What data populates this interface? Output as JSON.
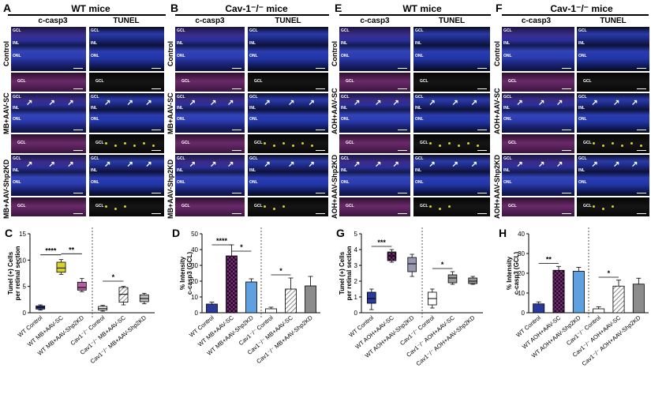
{
  "panels": {
    "A": {
      "label": "A",
      "title": "WT mice"
    },
    "B": {
      "label": "B",
      "title": "Cav-1⁻/⁻ mice"
    },
    "E": {
      "label": "E",
      "title": "WT mice"
    },
    "F": {
      "label": "F",
      "title": "Cav-1⁻/⁻ mice"
    }
  },
  "columns": {
    "stain1": "c-casp3",
    "stain2": "TUNEL"
  },
  "rows": {
    "AB": [
      "Control",
      "MB+AAV-SC",
      "MB+AAV-Shp2KD"
    ],
    "EF": [
      "Control",
      "AOH+AAV-SC",
      "AOH+AAV-Shp2KD"
    ]
  },
  "layers": {
    "gcl": "GCL",
    "inl": "INL",
    "onl": "ONL"
  },
  "colors": {
    "blue": "#3a5fc8",
    "magenta": "#c0509c",
    "dark": "#101010",
    "yellow": "#d8d22a",
    "grey": "#8c8c8c",
    "purple": "#7a2e7a",
    "lightblue": "#5fa0e0",
    "navy": "#2a3a9a"
  },
  "chart_data": [
    {
      "id": "C",
      "type": "box",
      "label": "C",
      "ylabel": "Tunel (+) Cells per retinal section",
      "ylim": [
        0,
        15
      ],
      "yticks": [
        0,
        5,
        10,
        15
      ],
      "categories": [
        "WT Control",
        "WT MB+AAV-SC",
        "WT MB+AAV-Shp2KD",
        "Cav1⁻/⁻ Control",
        "Cav1⁻/⁻ MB+AAV-SC",
        "Cav1⁻/⁻ MB+AAV-Shp2KD"
      ],
      "boxes": [
        {
          "min": 0.5,
          "q1": 0.7,
          "med": 1.0,
          "q3": 1.3,
          "max": 1.5
        },
        {
          "min": 7.3,
          "q1": 7.7,
          "med": 8.5,
          "q3": 9.6,
          "max": 10.1
        },
        {
          "min": 4.0,
          "q1": 4.3,
          "med": 4.8,
          "q3": 5.8,
          "max": 6.5
        },
        {
          "min": 0.3,
          "q1": 0.5,
          "med": 0.8,
          "q3": 1.2,
          "max": 1.4
        },
        {
          "min": 1.5,
          "q1": 2.0,
          "med": 3.5,
          "q3": 4.8,
          "max": 5.0
        },
        {
          "min": 1.7,
          "q1": 2.1,
          "med": 2.7,
          "q3": 3.4,
          "max": 3.7
        }
      ],
      "significance": [
        {
          "between": [
            0,
            1
          ],
          "text": "****",
          "y": 11
        },
        {
          "between": [
            1,
            2
          ],
          "text": "**",
          "y": 11.2
        },
        {
          "between": [
            3,
            4
          ],
          "text": "*",
          "y": 6.0
        }
      ]
    },
    {
      "id": "D",
      "type": "bar",
      "label": "D",
      "ylabel": "% Intensity c-casp3 (GCL)",
      "ylim": [
        0,
        50
      ],
      "yticks": [
        0,
        10,
        20,
        30,
        40,
        50
      ],
      "categories": [
        "WT Control",
        "WT MB+AAV-SC",
        "WT MB+AAV-Shp2KD",
        "Cav1⁻/⁻ Control",
        "Cav1⁻/⁻ MB+AAV-SC",
        "Cav1⁻/⁻ MB+AAV-Shp2KD"
      ],
      "values": [
        5.5,
        36,
        19.5,
        2.5,
        15,
        17
      ],
      "errors": [
        1.2,
        7,
        2,
        1,
        7,
        6
      ],
      "significance": [
        {
          "between": [
            0,
            1
          ],
          "text": "****",
          "y": 43
        },
        {
          "between": [
            1,
            2
          ],
          "text": "*",
          "y": 39
        },
        {
          "between": [
            3,
            4
          ],
          "text": "*",
          "y": 24
        }
      ]
    },
    {
      "id": "G",
      "type": "box",
      "label": "G",
      "ylabel": "Tunel (+) Cells per retinal section",
      "ylim": [
        0,
        5
      ],
      "yticks": [
        0,
        1,
        2,
        3,
        4,
        5
      ],
      "categories": [
        "WT Control",
        "WT AOH+AAV-SC",
        "WT AOH+AAV-Shp2KD",
        "Cav1⁻/⁻ Control",
        "Cav1⁻/⁻ AOH+AAV-SC",
        "Cav1⁻/⁻ AOH+AAV-Shp2KD"
      ],
      "boxes": [
        {
          "min": 0.2,
          "q1": 0.6,
          "med": 0.9,
          "q3": 1.3,
          "max": 1.5
        },
        {
          "min": 3.2,
          "q1": 3.3,
          "med": 3.6,
          "q3": 3.85,
          "max": 4.0
        },
        {
          "min": 2.3,
          "q1": 2.6,
          "med": 3.1,
          "q3": 3.5,
          "max": 3.7
        },
        {
          "min": 0.3,
          "q1": 0.5,
          "med": 0.9,
          "q3": 1.3,
          "max": 1.5
        },
        {
          "min": 1.8,
          "q1": 1.9,
          "med": 2.2,
          "q3": 2.4,
          "max": 2.6
        },
        {
          "min": 1.8,
          "q1": 1.85,
          "med": 2.0,
          "q3": 2.2,
          "max": 2.3
        }
      ],
      "significance": [
        {
          "between": [
            0,
            1
          ],
          "text": "***",
          "y": 4.2
        },
        {
          "between": [
            3,
            4
          ],
          "text": "*",
          "y": 2.8
        }
      ]
    },
    {
      "id": "H",
      "type": "bar",
      "label": "H",
      "ylabel": "% Intensity c-casp3 (GCL)",
      "ylim": [
        0,
        40
      ],
      "yticks": [
        0,
        10,
        20,
        30,
        40
      ],
      "categories": [
        "WT Control",
        "WT AOH+AAV-SC",
        "WT AOH+AAV-Shp2KD",
        "Cav1⁻/⁻ Control",
        "Cav1⁻/⁻ AOH+AAV-SC",
        "Cav1⁻/⁻ AOH+AAV-Shp2KD"
      ],
      "values": [
        4.5,
        21.5,
        21,
        2,
        13.5,
        14.5
      ],
      "errors": [
        1,
        2,
        2,
        1,
        3,
        3
      ],
      "significance": [
        {
          "between": [
            0,
            1
          ],
          "text": "**",
          "y": 25
        },
        {
          "between": [
            3,
            4
          ],
          "text": "*",
          "y": 18
        }
      ]
    }
  ]
}
